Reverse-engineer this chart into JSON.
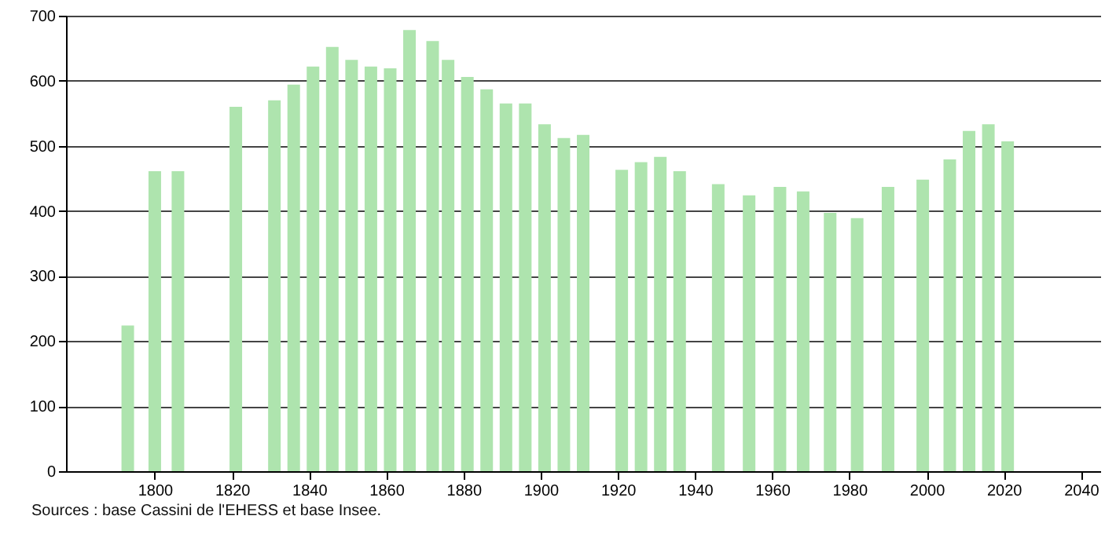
{
  "chart_data": {
    "type": "bar",
    "x": [
      1793,
      1800,
      1806,
      1821,
      1831,
      1836,
      1841,
      1846,
      1851,
      1856,
      1861,
      1866,
      1872,
      1876,
      1881,
      1886,
      1891,
      1896,
      1901,
      1906,
      1911,
      1921,
      1926,
      1931,
      1936,
      1946,
      1954,
      1962,
      1968,
      1975,
      1982,
      1990,
      1999,
      2006,
      2011,
      2016,
      2021
    ],
    "values": [
      224,
      461,
      461,
      560,
      570,
      594,
      622,
      652,
      632,
      622,
      619,
      678,
      661,
      632,
      606,
      587,
      565,
      565,
      533,
      512,
      517,
      463,
      475,
      483,
      461,
      441,
      424,
      437,
      430,
      397,
      389,
      437,
      448,
      479,
      523,
      533,
      507
    ],
    "color": "#aee4ae",
    "xlim": [
      1777,
      2045
    ],
    "xticks": [
      1800,
      1820,
      1840,
      1860,
      1880,
      1900,
      1920,
      1940,
      1960,
      1980,
      2000,
      2020,
      2040
    ],
    "ylim": [
      0,
      700
    ],
    "yticks": [
      0,
      100,
      200,
      300,
      400,
      500,
      600,
      700
    ],
    "grid": "y",
    "annotations": [
      "Sources : base Cassini de l'EHESS et base Insee."
    ]
  }
}
